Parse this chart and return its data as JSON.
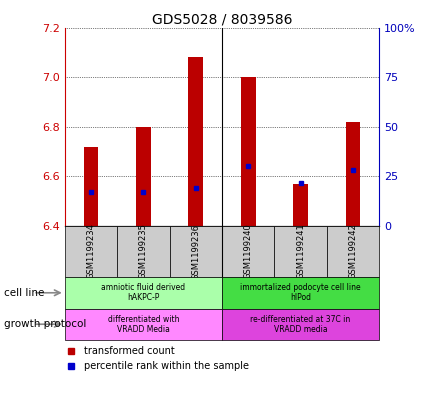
{
  "title": "GDS5028 / 8039586",
  "samples": [
    "GSM1199234",
    "GSM1199235",
    "GSM1199236",
    "GSM1199240",
    "GSM1199241",
    "GSM1199242"
  ],
  "red_values": [
    6.72,
    6.8,
    7.08,
    7.0,
    6.57,
    6.82
  ],
  "blue_values": [
    6.535,
    6.535,
    6.555,
    6.64,
    6.575,
    6.625
  ],
  "ylim": [
    6.4,
    7.2
  ],
  "yticks_left": [
    6.4,
    6.6,
    6.8,
    7.0,
    7.2
  ],
  "yticks_right": [
    0,
    25,
    50,
    75,
    100
  ],
  "yticks_right_labels": [
    "0",
    "25",
    "50",
    "75",
    "100%"
  ],
  "cell_line_groups": [
    {
      "label": "amniotic fluid derived\nhAKPC-P",
      "color": "#aaffaa",
      "start": 0,
      "end": 3
    },
    {
      "label": "immortalized podocyte cell line\nhIPod",
      "color": "#44dd44",
      "start": 3,
      "end": 6
    }
  ],
  "growth_protocol_groups": [
    {
      "label": "differentiated with\nVRADD Media",
      "color": "#ff88ff",
      "start": 0,
      "end": 3
    },
    {
      "label": "re-differentiated at 37C in\nVRADD media",
      "color": "#dd44dd",
      "start": 3,
      "end": 6
    }
  ],
  "legend_red_label": "transformed count",
  "legend_blue_label": "percentile rank within the sample",
  "red_color": "#BB0000",
  "blue_color": "#0000CC",
  "left_axis_color": "#CC0000",
  "right_axis_color": "#0000BB"
}
